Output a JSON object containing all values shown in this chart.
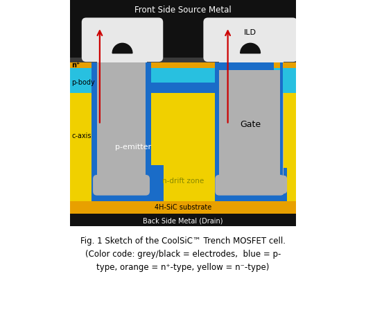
{
  "title_top": "Front Side Source Metal",
  "caption": "Fig. 1 Sketch of the CoolSiC™ Trench MOSFET cell.\n(Color code: grey/black = electrodes,  blue = p-\ntype, orange = n⁺-type, yellow = n⁻-type)",
  "colors": {
    "black": "#111111",
    "dark_gray": "#3a3a3a",
    "gray": "#aaaaaa",
    "light_gray": "#b0b0b0",
    "white": "#e8e8e8",
    "yellow": "#f0d000",
    "blue": "#1a6cc8",
    "light_blue": "#28c0e0",
    "orange": "#e8a000",
    "red": "#cc0000",
    "bg": "#ffffff"
  },
  "labels": {
    "n_plus": "n⁺",
    "p_body": "p-body",
    "c_axis": "c-axis",
    "p_emitter": "p-emitter",
    "n_drift": "n-drift zone",
    "substrate": "4H-SiC substrate",
    "back_metal": "Back Side Metal (Drain)",
    "ILD": "ILD",
    "Gate": "Gate"
  }
}
